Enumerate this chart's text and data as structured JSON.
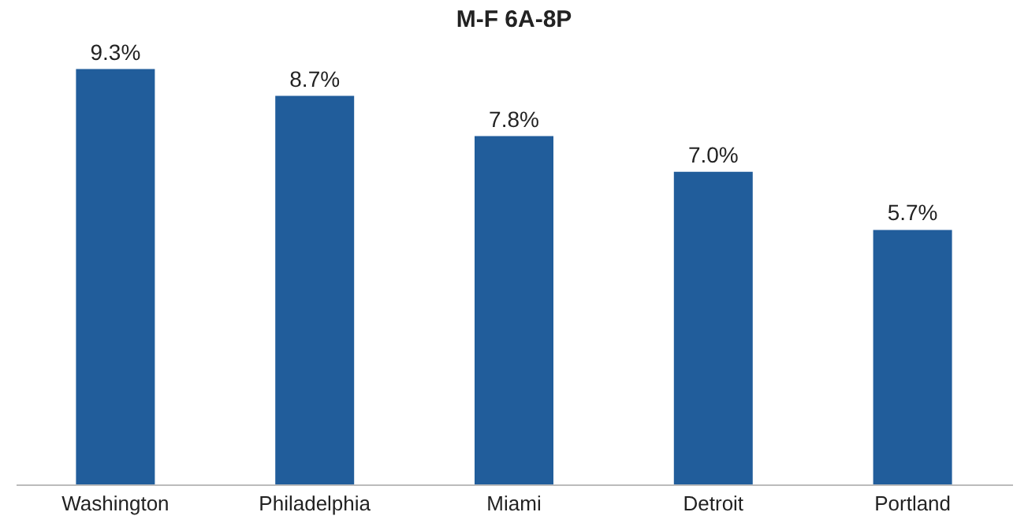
{
  "chart_data": {
    "type": "bar",
    "title": "M-F 6A-8P",
    "categories": [
      "Washington",
      "Philadelphia",
      "Miami",
      "Detroit",
      "Portland"
    ],
    "values": [
      9.3,
      8.7,
      7.8,
      7.0,
      5.7
    ],
    "value_labels": [
      "9.3%",
      "8.7%",
      "7.8%",
      "7.0%",
      "5.7%"
    ],
    "color": "#215d9b",
    "tick_labels": "x",
    "grid": false
  }
}
